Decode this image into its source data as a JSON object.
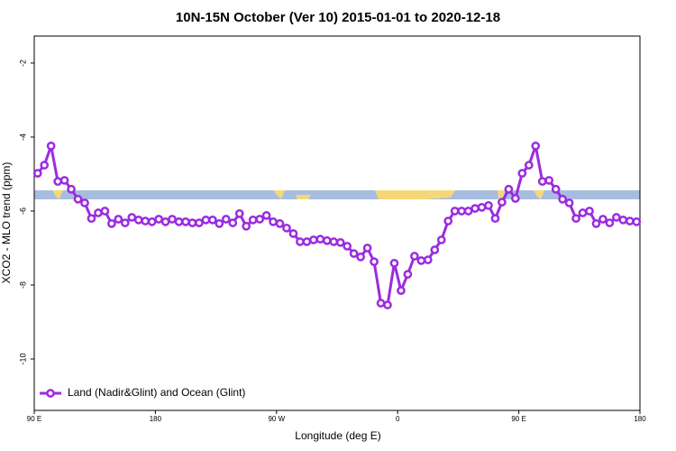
{
  "chart_data": {
    "type": "line",
    "title": "10N-15N October (Ver 10)   2015-01-01 to 2020-12-18",
    "xlabel": "Longitude (deg E)",
    "ylabel": "XCO2 - MLO trend (ppm)",
    "xlim": [
      90,
      540
    ],
    "ylim": [
      -11.39,
      -1.27
    ],
    "xticks": [
      {
        "value": 90,
        "label": "90 E"
      },
      180,
      {
        "value": 270,
        "label": "90 W"
      },
      {
        "value": 360,
        "label": "0"
      },
      {
        "value": 450,
        "label": "90 E"
      },
      {
        "value": 540,
        "label": "180"
      }
    ],
    "yticks": [
      -10,
      -8,
      -6,
      -4,
      -2
    ],
    "legend": "bottom-left",
    "x": [
      92.5,
      97.5,
      102.5,
      107.5,
      112.5,
      117.5,
      122.5,
      127.5,
      132.5,
      137.5,
      142.5,
      147.5,
      152.5,
      157.5,
      162.5,
      167.5,
      172.5,
      177.5,
      182.5,
      187.5,
      192.5,
      197.5,
      202.5,
      207.5,
      212.5,
      217.5,
      222.5,
      227.5,
      232.5,
      237.5,
      242.5,
      247.5,
      252.5,
      257.5,
      262.5,
      267.5,
      272.5,
      277.5,
      282.5,
      287.5,
      292.5,
      297.5,
      302.5,
      307.5,
      312.5,
      317.5,
      322.5,
      327.5,
      332.5,
      337.5,
      342.5,
      347.5,
      352.5,
      357.5,
      362.5,
      367.5,
      372.5,
      377.5,
      382.5,
      387.5,
      392.5,
      397.5,
      402.5,
      407.5,
      412.5,
      417.5,
      422.5,
      427.5,
      432.5,
      437.5,
      442.5,
      447.5,
      452.5,
      457.5,
      462.5,
      467.5,
      472.5,
      477.5,
      482.5,
      487.5,
      492.5,
      497.5,
      502.5,
      507.5,
      512.5,
      517.5,
      522.5,
      527.5,
      532.5,
      537.5
    ],
    "series": [
      {
        "name": "Land (Nadir&Glint) and Ocean (Glint)",
        "color": "#9b2be0",
        "values": [
          -4.98,
          -4.76,
          -4.24,
          -5.2,
          -5.17,
          -5.41,
          -5.68,
          -5.78,
          -6.2,
          -6.05,
          -6.0,
          -6.34,
          -6.22,
          -6.32,
          -6.17,
          -6.24,
          -6.27,
          -6.29,
          -6.22,
          -6.29,
          -6.22,
          -6.29,
          -6.29,
          -6.32,
          -6.32,
          -6.24,
          -6.24,
          -6.34,
          -6.22,
          -6.32,
          -6.07,
          -6.41,
          -6.24,
          -6.22,
          -6.12,
          -6.29,
          -6.34,
          -6.46,
          -6.61,
          -6.83,
          -6.83,
          -6.78,
          -6.76,
          -6.8,
          -6.83,
          -6.85,
          -6.95,
          -7.15,
          -7.24,
          -7.0,
          -7.37,
          -8.49,
          -8.54,
          -7.41,
          -8.15,
          -7.71,
          -7.22,
          -7.34,
          -7.32,
          -7.05,
          -6.78,
          -6.27,
          -6.0,
          -6.0,
          -6.0,
          -5.93,
          -5.9,
          -5.85,
          -6.2,
          -5.76,
          -5.41,
          -5.66,
          -4.98,
          -4.76,
          -4.24,
          -5.2,
          -5.17,
          -5.41,
          -5.68,
          -5.78,
          -6.2,
          -6.05,
          -6.0,
          -6.34,
          -6.22,
          -6.32,
          -6.17,
          -6.24,
          -6.27,
          -6.29
        ]
      }
    ]
  }
}
